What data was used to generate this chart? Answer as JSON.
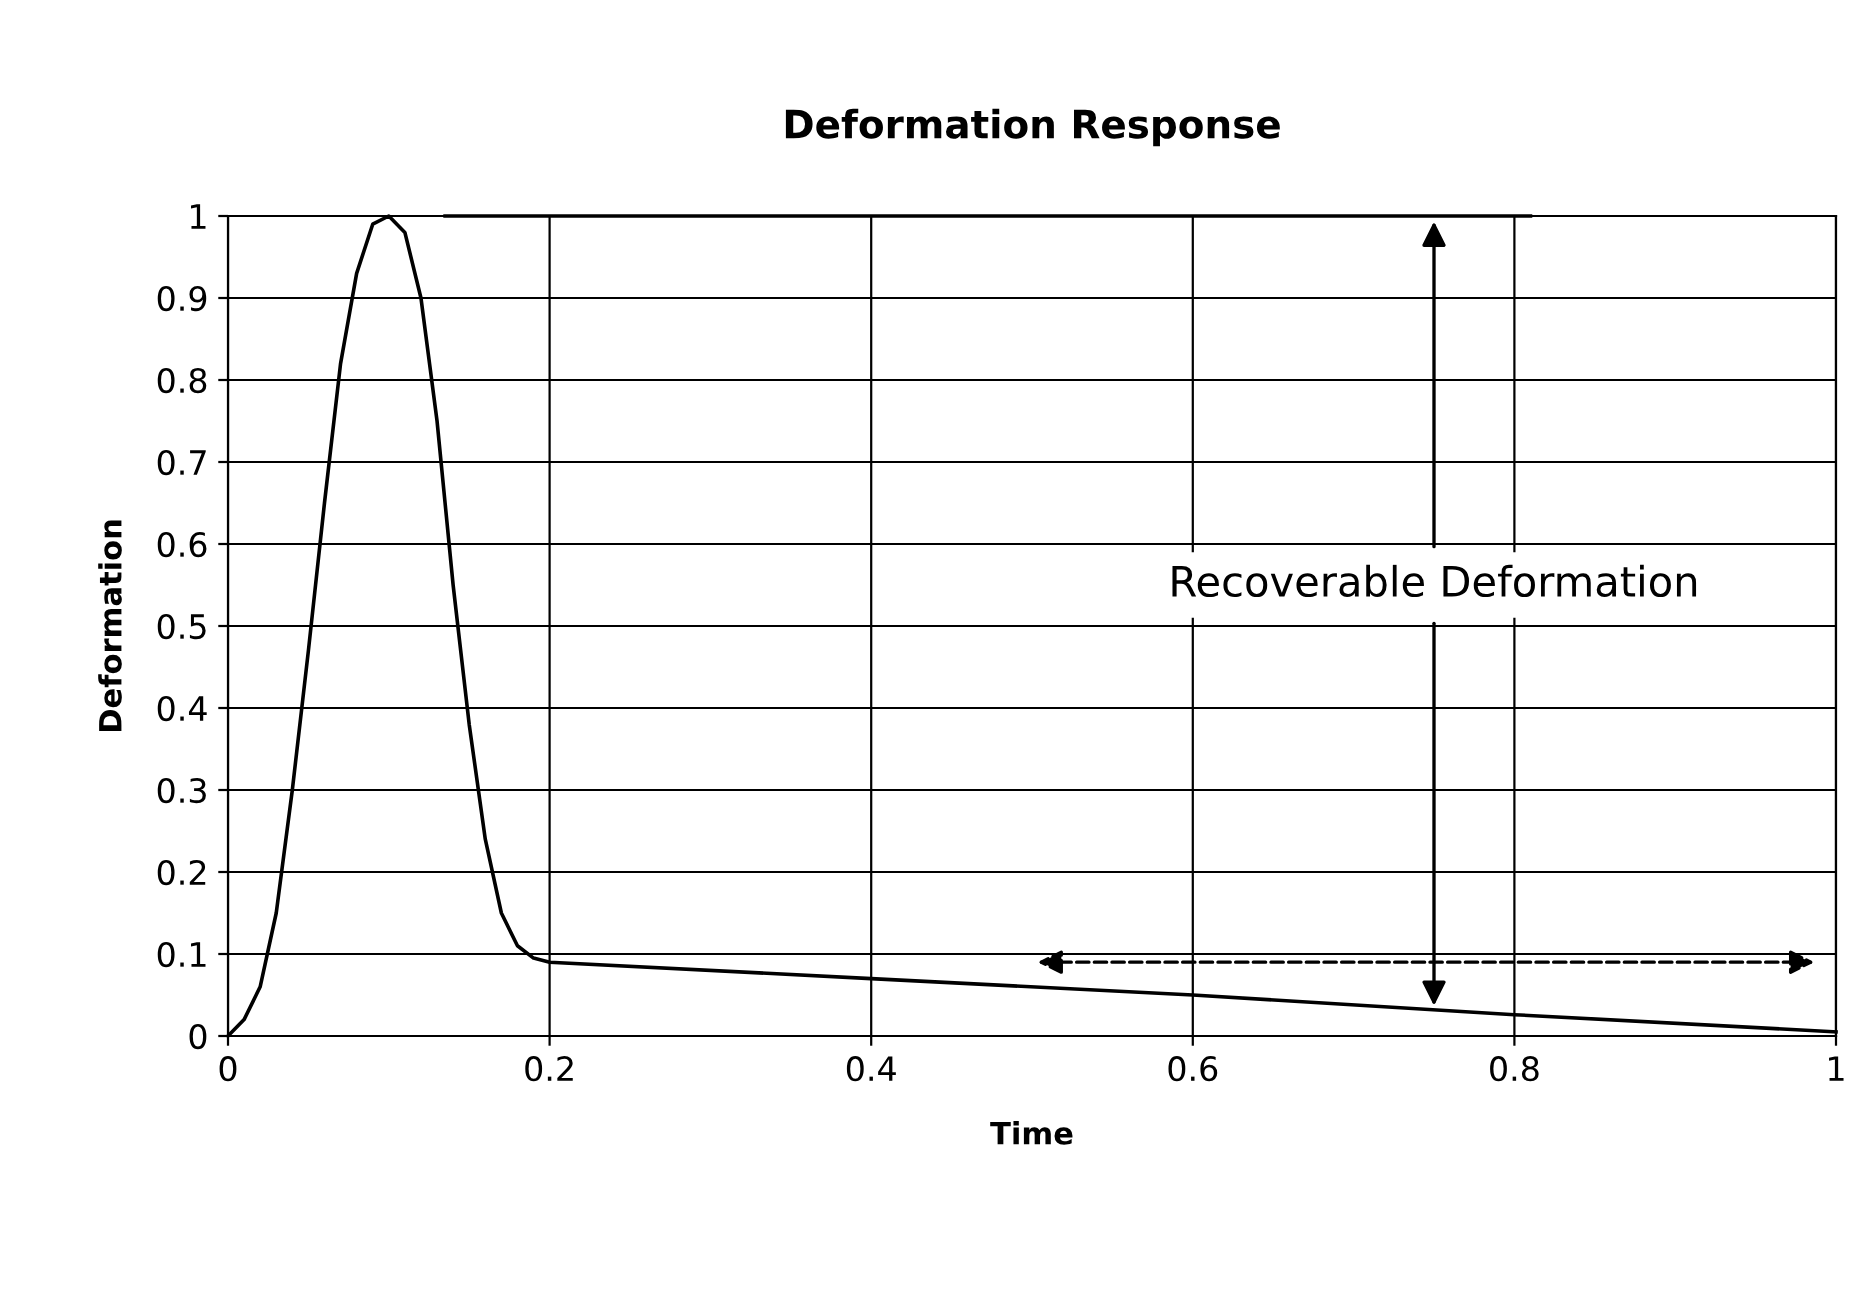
{
  "chart_data": {
    "type": "line",
    "title": "Deformation Response",
    "xlabel": "Time",
    "ylabel": "Deformation",
    "series": [
      {
        "color": "#000000",
        "x": [
          0,
          0.01,
          0.02,
          0.03,
          0.04,
          0.05,
          0.06,
          0.07,
          0.08,
          0.09,
          0.1,
          0.11,
          0.12,
          0.13,
          0.14,
          0.15,
          0.16,
          0.17,
          0.18,
          0.19,
          0.2,
          0.4,
          0.6,
          0.8,
          1
        ],
        "values": [
          0,
          0.02,
          0.06,
          0.15,
          0.3,
          0.47,
          0.65,
          0.82,
          0.93,
          0.99,
          1,
          0.98,
          0.9,
          0.75,
          0.55,
          0.38,
          0.24,
          0.15,
          0.11,
          0.095,
          0.09,
          0.07,
          0.05,
          0.026,
          0.005
        ]
      },
      {
        "color": "#000000",
        "x": [
          0.135,
          0.81
        ],
        "values": [
          1,
          1
        ]
      }
    ],
    "annotations": [
      {
        "text": "Recoverable Deformation",
        "x": 0.75,
        "y": 0.03
      }
    ],
    "xlim": [
      0,
      1
    ],
    "ylim": [
      0,
      1
    ],
    "xticks": [
      0,
      0.2,
      0.4,
      0.6,
      0.8,
      1
    ],
    "yticks": [
      0,
      0.1,
      0.2,
      0.3,
      0.4,
      0.5,
      0.6,
      0.7,
      0.8,
      0.9,
      1
    ],
    "grid": true,
    "legend": false,
    "marker": "none",
    "line_style": "solid"
  }
}
